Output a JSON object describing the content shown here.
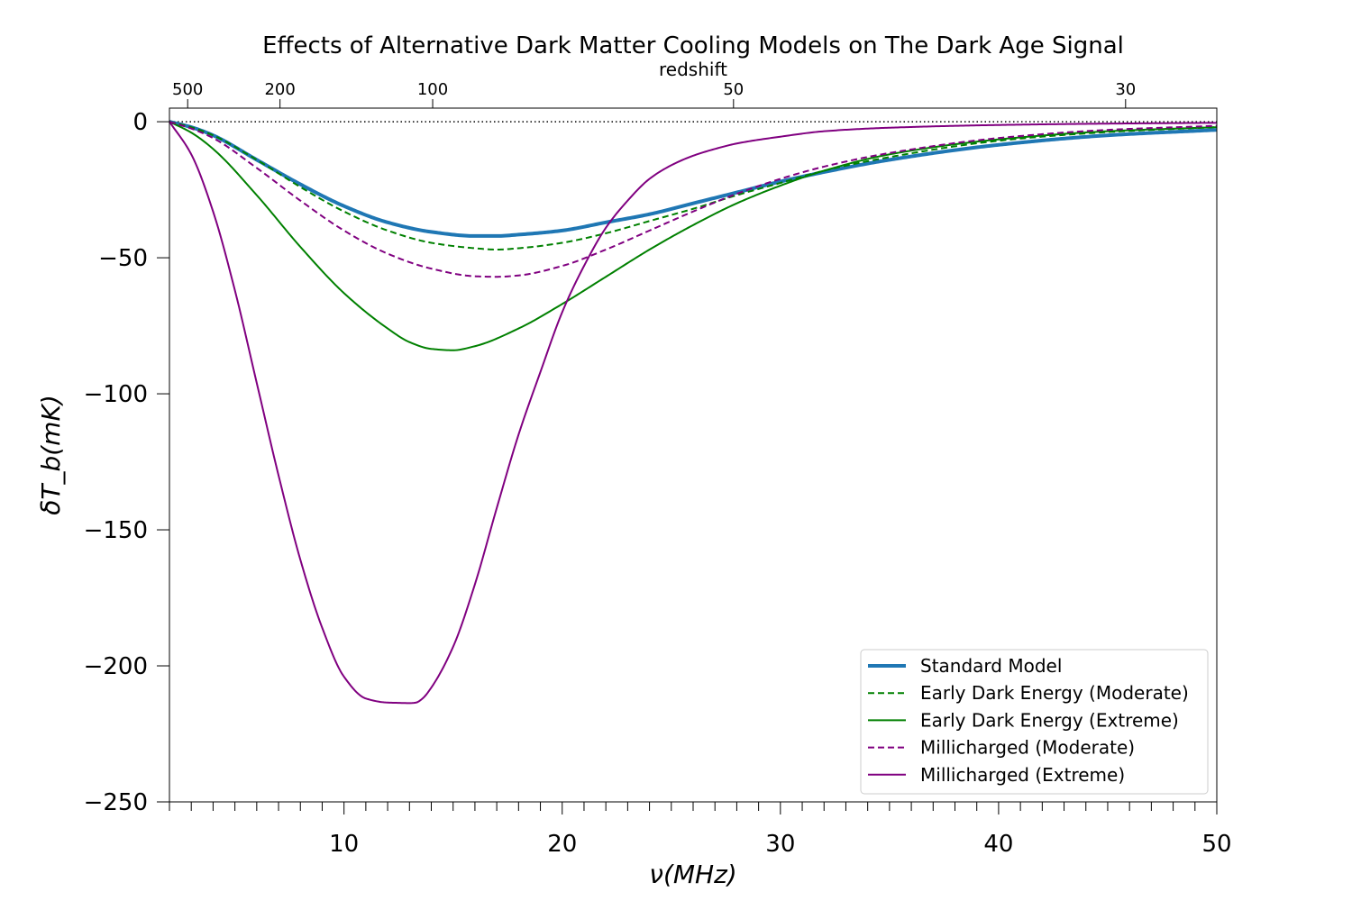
{
  "chart_data": {
    "type": "line",
    "title": "Effects of Alternative Dark Matter Cooling Models on The Dark Age Signal",
    "xlabel": "ν(MHz)",
    "ylabel": "δT_b(mK)",
    "top_axis_label": "redshift",
    "xlim": [
      2,
      50
    ],
    "ylim": [
      -250,
      5
    ],
    "x_ticks": [
      10,
      20,
      30,
      40,
      50
    ],
    "y_ticks": [
      0,
      -50,
      -100,
      -150,
      -200,
      -250
    ],
    "y_tick_labels": [
      "0",
      "−50",
      "−100",
      "−150",
      "−200",
      "−250"
    ],
    "top_ticks": [
      {
        "label": "500",
        "z": 500
      },
      {
        "label": "200",
        "z": 200
      },
      {
        "label": "100",
        "z": 100
      },
      {
        "label": "50",
        "z": 50
      },
      {
        "label": "30",
        "z": 30
      }
    ],
    "reference_line": {
      "y": 0,
      "style": "dotted"
    },
    "legend_position": "lower-right",
    "series": [
      {
        "name": "Standard Model",
        "color": "#1f77b4",
        "dash": "solid",
        "width": 4,
        "x": [
          2,
          3,
          4,
          6,
          8,
          10,
          12,
          14,
          16,
          17,
          18,
          20,
          22,
          24,
          26,
          28,
          30,
          32,
          35,
          40,
          45,
          50
        ],
        "y": [
          0,
          -2,
          -5,
          -14,
          -23,
          -31,
          -37,
          -40.5,
          -42,
          -42,
          -41.5,
          -40,
          -37,
          -34,
          -30,
          -26,
          -22,
          -18.5,
          -14,
          -8.5,
          -5,
          -3
        ]
      },
      {
        "name": "Early Dark Energy (Moderate)",
        "color": "#008000",
        "dash": "dashed",
        "width": 2,
        "x": [
          2,
          3,
          4,
          6,
          8,
          10,
          12,
          14,
          16,
          17,
          18,
          20,
          22,
          24,
          26,
          28,
          30,
          32,
          35,
          40,
          45,
          50
        ],
        "y": [
          0,
          -2,
          -5,
          -14,
          -24,
          -33,
          -40,
          -44.5,
          -46.5,
          -47,
          -46.5,
          -44.5,
          -41,
          -36.5,
          -32,
          -27,
          -22.5,
          -18,
          -13,
          -7,
          -3.8,
          -2
        ]
      },
      {
        "name": "Early Dark Energy (Extreme)",
        "color": "#008000",
        "dash": "solid",
        "width": 2,
        "x": [
          2,
          3,
          4,
          6,
          8,
          10,
          12,
          13,
          14,
          15,
          16,
          18,
          20,
          22,
          24,
          26,
          28,
          30,
          32,
          35,
          40,
          45,
          50
        ],
        "y": [
          0,
          -4,
          -10,
          -27,
          -46,
          -63,
          -76,
          -81,
          -83.5,
          -84,
          -82.5,
          -76,
          -67,
          -57,
          -47,
          -38,
          -30,
          -23.5,
          -18,
          -12,
          -6.5,
          -3.5,
          -2
        ]
      },
      {
        "name": "Millicharged (Moderate)",
        "color": "#800080",
        "dash": "dashed",
        "width": 2,
        "x": [
          2,
          3,
          4,
          6,
          8,
          10,
          12,
          14,
          16,
          17,
          18,
          20,
          22,
          24,
          26,
          28,
          30,
          32,
          35,
          40,
          45,
          50
        ],
        "y": [
          0,
          -2.5,
          -6,
          -17,
          -29,
          -40,
          -48.5,
          -54,
          -56.8,
          -57,
          -56.5,
          -53,
          -47,
          -40,
          -33,
          -26.5,
          -21,
          -16.5,
          -11.5,
          -6,
          -3,
          -1.5
        ]
      },
      {
        "name": "Millicharged (Extreme)",
        "color": "#800080",
        "dash": "solid",
        "width": 2,
        "x": [
          2,
          3,
          4,
          5,
          6,
          7,
          8,
          9,
          10,
          11,
          12,
          12.5,
          13,
          13.3,
          13.6,
          14,
          15,
          16,
          17,
          18,
          19,
          20,
          21,
          22,
          23,
          24,
          25,
          26,
          27,
          28,
          30,
          32,
          35,
          40,
          45,
          50
        ],
        "y": [
          0,
          -12,
          -33,
          -62,
          -96,
          -130,
          -161,
          -186,
          -204,
          -212,
          -213.5,
          -213.6,
          -213.7,
          -213.5,
          -212,
          -208,
          -193,
          -170,
          -142,
          -115,
          -92,
          -70,
          -53,
          -39,
          -29,
          -21,
          -16,
          -12.5,
          -10,
          -8,
          -5.5,
          -3.5,
          -2.2,
          -1.2,
          -0.7,
          -0.4
        ]
      }
    ]
  }
}
